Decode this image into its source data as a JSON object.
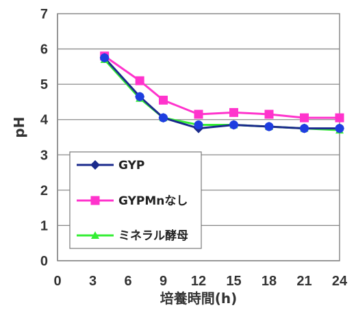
{
  "chart_data": {
    "type": "line",
    "xlabel": "培養時間(h)",
    "ylabel": "pH",
    "xlim": [
      0,
      24
    ],
    "ylim": [
      0,
      7
    ],
    "xticks": [
      "0",
      "3",
      "6",
      "9",
      "12",
      "15",
      "18",
      "21",
      "24"
    ],
    "yticks": [
      "0",
      "1",
      "2",
      "3",
      "4",
      "5",
      "6",
      "7"
    ],
    "grid": "horizontal",
    "legend_position": "lower-left",
    "x": [
      4,
      7,
      9,
      12,
      15,
      18,
      21,
      24
    ],
    "series": [
      {
        "name": "GYP",
        "color": "#1a2a8c",
        "marker": "diamond",
        "values": [
          5.75,
          4.65,
          4.05,
          3.75,
          3.85,
          3.8,
          3.75,
          3.75
        ]
      },
      {
        "name": "GYPMnなし",
        "color": "#ff33cc",
        "marker": "square",
        "values": [
          5.8,
          5.1,
          4.55,
          4.15,
          4.2,
          4.15,
          4.05,
          4.05
        ]
      },
      {
        "name": "ミネラル酵母",
        "color": "#33ee33",
        "marker": "triangle",
        "values": [
          5.7,
          4.6,
          4.05,
          3.85,
          3.85,
          3.8,
          3.75,
          3.7
        ]
      }
    ],
    "marker_series": {
      "name": "",
      "color": "#1e3ee0",
      "marker": "circle",
      "values": [
        5.75,
        4.65,
        4.05,
        3.85,
        3.85,
        3.8,
        3.75,
        3.75
      ]
    }
  }
}
